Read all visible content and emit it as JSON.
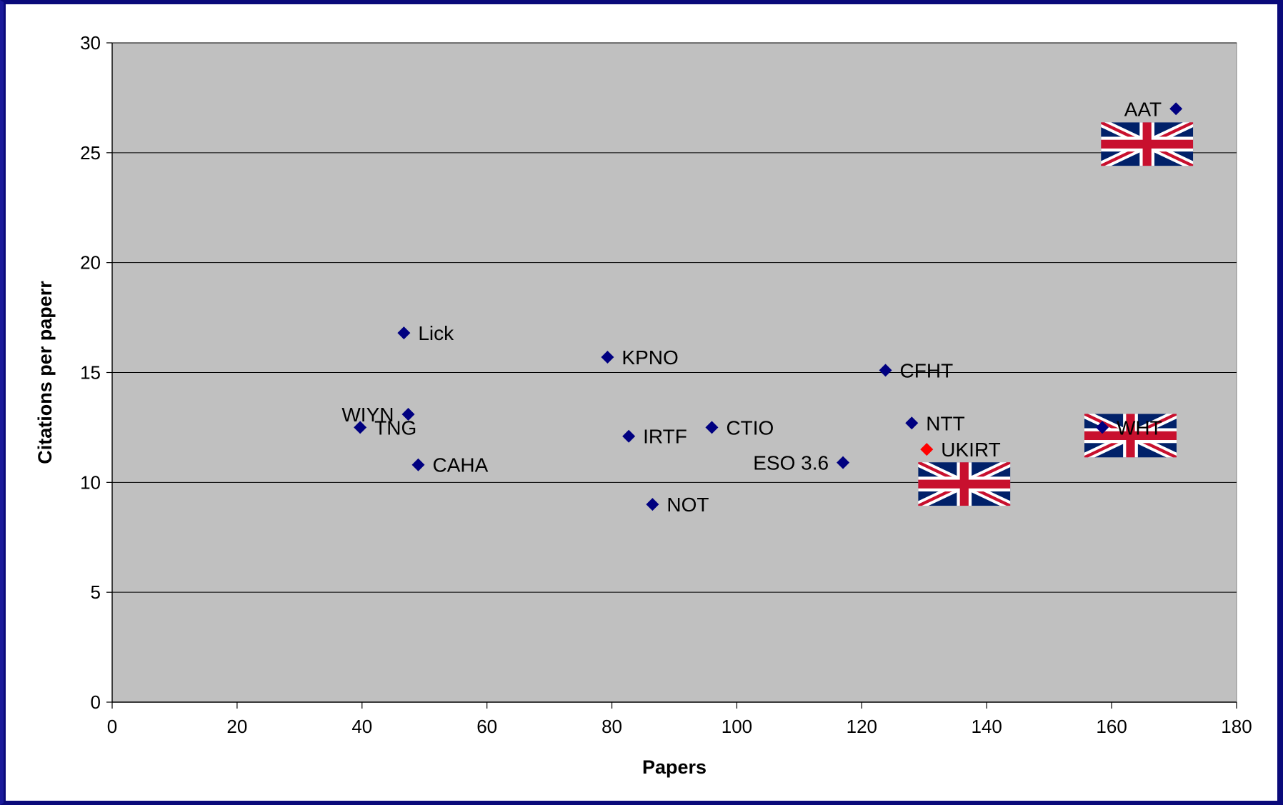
{
  "chart_data": {
    "type": "scatter",
    "title": "",
    "xlabel": "Papers",
    "ylabel": "Citations per paperr",
    "xlim": [
      0,
      180
    ],
    "ylim": [
      0,
      30
    ],
    "x_ticks": [
      "0",
      "20",
      "40",
      "60",
      "80",
      "100",
      "120",
      "140",
      "160",
      "180"
    ],
    "y_ticks": [
      "0",
      "5",
      "10",
      "15",
      "20",
      "25",
      "30"
    ],
    "grid": "horizontal",
    "legend": "none",
    "colors": {
      "plot_background": "#c0c0c0",
      "marker": "#000080",
      "highlight_marker": "#ff0000",
      "frame": "#0a0a7a"
    },
    "points": [
      {
        "label": "AAT",
        "x": 170.3,
        "y": 27.0,
        "flag": true
      },
      {
        "label": "Lick",
        "x": 46.7,
        "y": 16.8
      },
      {
        "label": "KPNO",
        "x": 79.3,
        "y": 15.7
      },
      {
        "label": "CFHT",
        "x": 123.8,
        "y": 15.1
      },
      {
        "label": "WIYN",
        "x": 47.4,
        "y": 13.1
      },
      {
        "label": "TNG",
        "x": 39.7,
        "y": 12.5
      },
      {
        "label": "NTT",
        "x": 128.0,
        "y": 12.7
      },
      {
        "label": "WHT",
        "x": 158.5,
        "y": 12.5,
        "flag": true
      },
      {
        "label": "CTIO",
        "x": 96.0,
        "y": 12.5
      },
      {
        "label": "IRTF",
        "x": 82.7,
        "y": 12.1
      },
      {
        "label": "UKIRT",
        "x": 130.4,
        "y": 11.5,
        "highlight": true,
        "flag": true
      },
      {
        "label": "ESO 3.6",
        "x": 117.0,
        "y": 10.9
      },
      {
        "label": "CAHA",
        "x": 49.0,
        "y": 10.8
      },
      {
        "label": "NOT",
        "x": 86.5,
        "y": 9.0
      }
    ]
  }
}
